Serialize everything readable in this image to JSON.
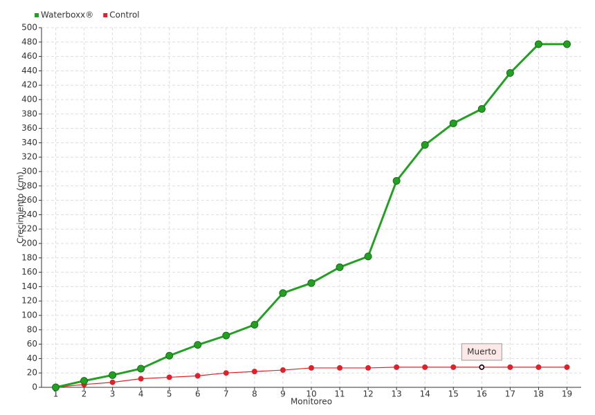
{
  "chart_data": {
    "type": "line",
    "y_label": "Crecimiento (cm)",
    "x_label": "Monitoreo",
    "categories": [
      "1",
      "2",
      "3",
      "4",
      "5",
      "6",
      "7",
      "8",
      "9",
      "10",
      "11",
      "12",
      "13",
      "14",
      "15",
      "16",
      "17",
      "18",
      "19"
    ],
    "series": [
      {
        "name": "Waterboxx®",
        "color": "#22a022",
        "values": [
          0,
          9,
          17,
          26,
          44,
          59,
          72,
          87,
          131,
          145,
          167,
          182,
          287,
          337,
          367,
          387,
          437,
          477,
          477
        ]
      },
      {
        "name": "Control",
        "color": "#e0202a",
        "values": [
          0,
          4,
          7,
          12,
          14,
          16,
          20,
          22,
          24,
          27,
          27,
          27,
          28,
          28,
          28,
          28,
          28,
          28,
          28
        ]
      }
    ],
    "annotations": [
      {
        "text": "Muerto",
        "series": "Control",
        "x": "16"
      }
    ],
    "ylim": [
      0,
      500
    ],
    "yticks": [
      0,
      20,
      40,
      60,
      80,
      100,
      120,
      140,
      160,
      180,
      200,
      220,
      240,
      260,
      280,
      300,
      320,
      340,
      360,
      380,
      400,
      420,
      440,
      460,
      480,
      500
    ],
    "grid": true,
    "legend": "top-left"
  }
}
